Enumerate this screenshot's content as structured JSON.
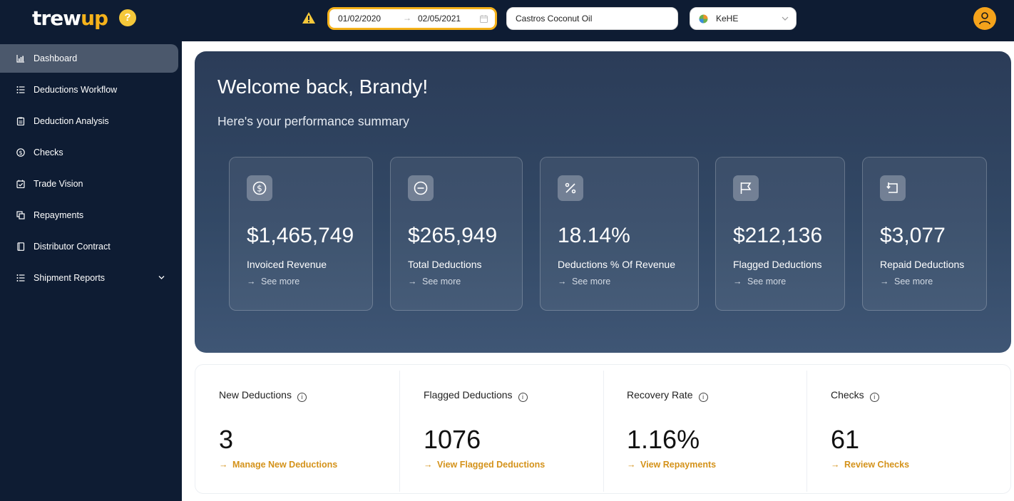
{
  "header": {
    "logo_main": "trew",
    "logo_accent": "up",
    "help_label": "?",
    "date_start": "01/02/2020",
    "date_arrow": "→",
    "date_end": "02/05/2021",
    "brand_value": "Castros Coconut Oil",
    "distributor_value": "KeHE"
  },
  "sidebar": {
    "items": [
      {
        "label": "Dashboard",
        "icon": "chart-icon",
        "active": true
      },
      {
        "label": "Deductions Workflow",
        "icon": "list-icon"
      },
      {
        "label": "Deduction Analysis",
        "icon": "clipboard-icon"
      },
      {
        "label": "Checks",
        "icon": "dollar-circle-icon"
      },
      {
        "label": "Trade Vision",
        "icon": "calendar-check-icon"
      },
      {
        "label": "Repayments",
        "icon": "copy-icon"
      },
      {
        "label": "Distributor Contract",
        "icon": "book-icon"
      },
      {
        "label": "Shipment Reports",
        "icon": "list-icon",
        "expandable": true
      }
    ]
  },
  "hero": {
    "welcome": "Welcome back, Brandy!",
    "summary": "Here's your performance summary",
    "cards": [
      {
        "icon": "dollar-circle-icon",
        "value": "$1,465,749",
        "label": "Invoiced Revenue",
        "more": "See more"
      },
      {
        "icon": "minus-circle-icon",
        "value": "$265,949",
        "label": "Total Deductions",
        "more": "See more"
      },
      {
        "icon": "percent-icon",
        "value": "18.14%",
        "label": "Deductions % Of Revenue",
        "more": "See more"
      },
      {
        "icon": "flag-icon",
        "value": "$212,136",
        "label": "Flagged Deductions",
        "more": "See more"
      },
      {
        "icon": "return-icon",
        "value": "$3,077",
        "label": "Repaid Deductions",
        "more": "See more"
      }
    ]
  },
  "kpis": [
    {
      "title": "New Deductions",
      "value": "3",
      "link": "Manage New Deductions"
    },
    {
      "title": "Flagged Deductions",
      "value": "1076",
      "link": "View Flagged Deductions"
    },
    {
      "title": "Recovery Rate",
      "value": "1.16%",
      "link": "View Repayments"
    },
    {
      "title": "Checks",
      "value": "61",
      "link": "Review Checks"
    }
  ],
  "colors": {
    "nav_bg": "#0e1c33",
    "accent": "#f5b21b",
    "link": "#d4921a"
  }
}
